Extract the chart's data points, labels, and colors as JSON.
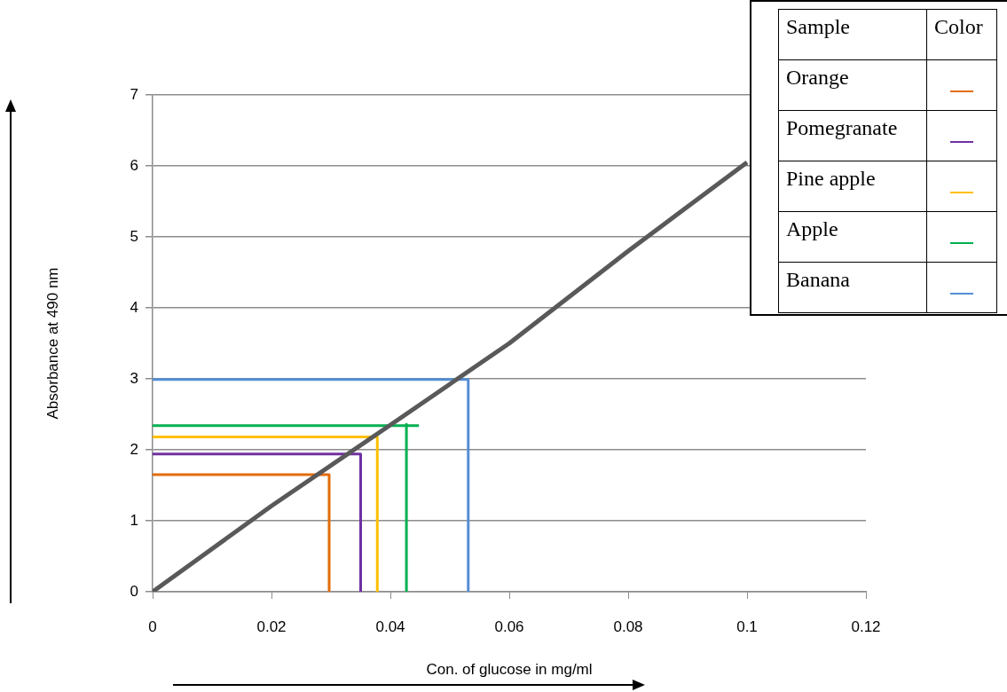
{
  "chart_data": {
    "type": "line",
    "xlabel": "Con. of glucose in mg/ml",
    "ylabel": "Absorbance at 490 nm",
    "legend_title": "Sample",
    "annotations": [
      "Color"
    ],
    "xlim": [
      0,
      0.12
    ],
    "xticks": [
      0,
      0.02,
      0.04,
      0.06,
      0.08,
      0.1,
      0.12
    ],
    "ylim": [
      0,
      7
    ],
    "yticks": [
      0,
      1,
      2,
      3,
      4,
      5,
      6,
      7
    ],
    "grid": "y",
    "legend": "top right",
    "marker": "none",
    "series": [
      {
        "color": "#595959",
        "x": [
          0,
          0.02,
          0.04,
          0.06,
          0.08,
          0.1
        ],
        "values": [
          0,
          1.21,
          2.35,
          3.5,
          4.8,
          6.05
        ]
      },
      {
        "name": "Orange",
        "color": "#e36c09",
        "x": [
          0,
          0.0297,
          0.0297
        ],
        "values": [
          1.65,
          1.65,
          0
        ]
      },
      {
        "name": "Pomegranate",
        "color": "#7030a0",
        "x": [
          0,
          0.035,
          0.035
        ],
        "values": [
          1.94,
          1.94,
          0
        ]
      },
      {
        "name": "Pine apple",
        "color": "#ffc000",
        "x": [
          0,
          0.0378,
          0.0378
        ],
        "values": [
          2.18,
          2.18,
          0
        ]
      },
      {
        "name": "Apple",
        "color": "#00b050",
        "x": [
          0,
          0.0448,
          0.0438,
          0.0427,
          0.0427
        ],
        "values": [
          2.34,
          2.34,
          null,
          2.36,
          0
        ]
      },
      {
        "name": "Banana",
        "color": "#558ed5",
        "x": [
          0,
          0.0531,
          0.0531
        ],
        "values": [
          2.99,
          2.99,
          0
        ]
      }
    ]
  }
}
